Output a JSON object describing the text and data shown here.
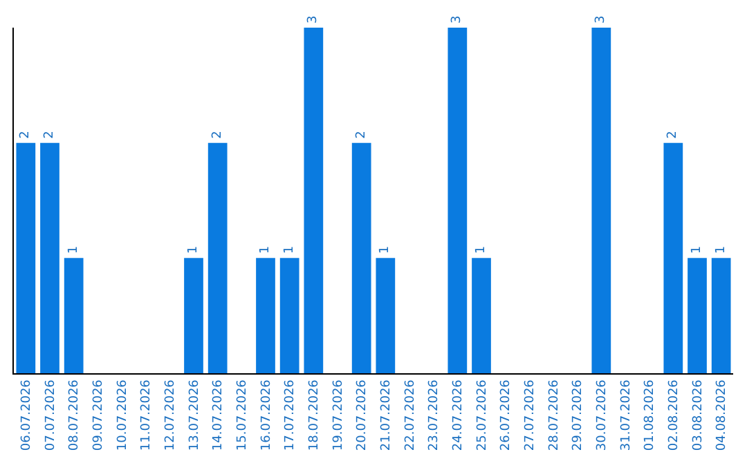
{
  "chart_data": {
    "type": "bar",
    "categories": [
      "06.07.2026",
      "07.07.2026",
      "08.07.2026",
      "09.07.2026",
      "10.07.2026",
      "11.07.2026",
      "12.07.2026",
      "13.07.2026",
      "14.07.2026",
      "15.07.2026",
      "16.07.2026",
      "17.07.2026",
      "18.07.2026",
      "19.07.2026",
      "20.07.2026",
      "21.07.2026",
      "22.07.2026",
      "23.07.2026",
      "24.07.2026",
      "25.07.2026",
      "26.07.2026",
      "27.07.2026",
      "28.07.2026",
      "29.07.2026",
      "30.07.2026",
      "31.07.2026",
      "01.08.2026",
      "02.08.2026",
      "03.08.2026",
      "04.08.2026"
    ],
    "values": [
      2,
      2,
      1,
      0,
      0,
      0,
      0,
      1,
      2,
      0,
      1,
      1,
      3,
      0,
      2,
      1,
      0,
      0,
      3,
      1,
      0,
      0,
      0,
      0,
      3,
      0,
      0,
      2,
      1,
      1
    ],
    "value_labels": [
      "2",
      "2",
      "1",
      null,
      null,
      null,
      null,
      "1",
      "2",
      null,
      "1",
      "1",
      "3",
      null,
      "2",
      "1",
      null,
      null,
      "3",
      "1",
      null,
      null,
      null,
      null,
      "3",
      null,
      null,
      "2",
      "1",
      "1"
    ],
    "color": "#0a7be0",
    "ylim": [
      0,
      3
    ],
    "tick_labels": "x"
  }
}
